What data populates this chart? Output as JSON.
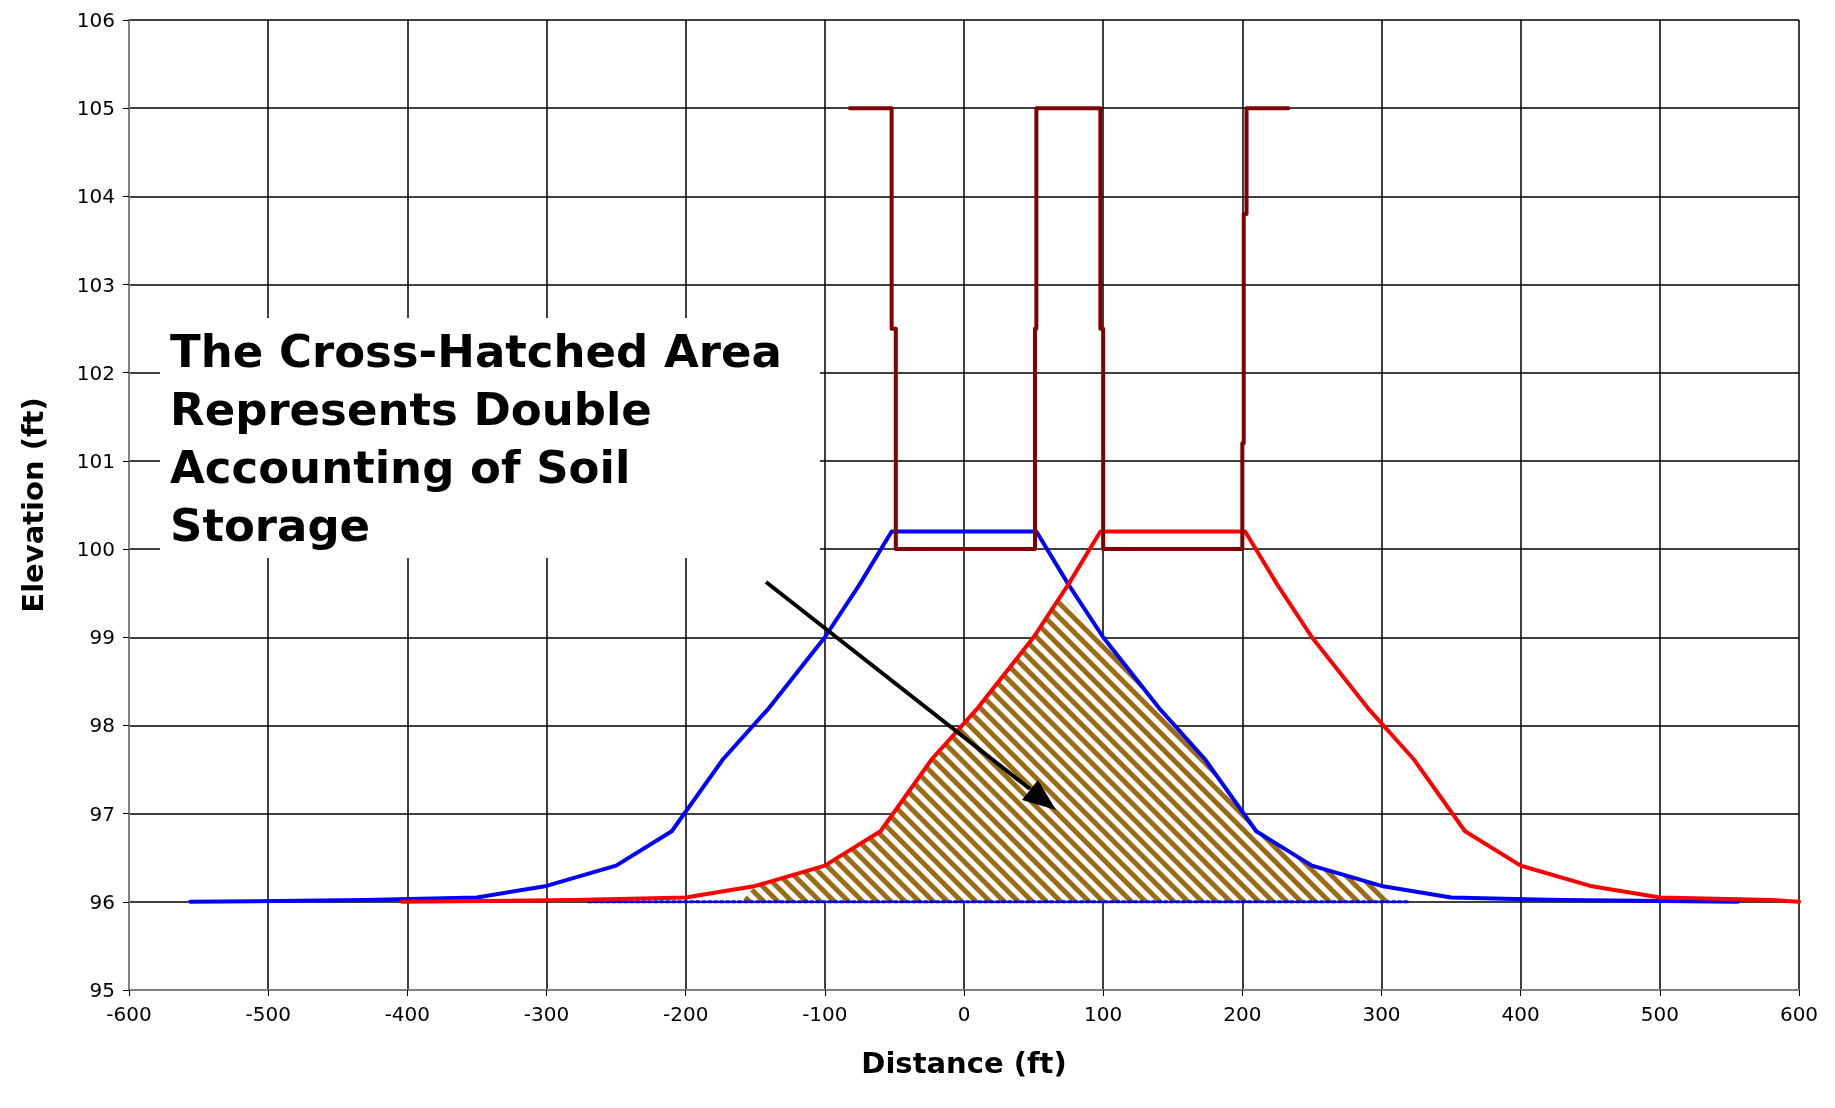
{
  "chart_data": {
    "type": "line",
    "xlabel": "Distance (ft)",
    "ylabel": "Elevation (ft)",
    "xlim": [
      -600,
      600
    ],
    "xticks": [
      -600,
      -500,
      -400,
      -300,
      -200,
      -100,
      0,
      100,
      200,
      300,
      400,
      500,
      600
    ],
    "ylim": [
      95,
      106
    ],
    "yticks": [
      95,
      96,
      97,
      98,
      99,
      100,
      101,
      102,
      103,
      104,
      105,
      106
    ],
    "grid": true,
    "marker": "none",
    "annotations": [
      "The Cross-Hatched Area Represents Double Accounting of Soil Storage"
    ],
    "series": [
      {
        "type": "area",
        "color": "#9c6b16",
        "x": [
          -160,
          -150,
          -100,
          -60,
          -23,
          10,
          50,
          70,
          100,
          140,
          173,
          210,
          250,
          300,
          310
        ],
        "values": [
          96,
          96.18,
          96.41,
          96.8,
          97.62,
          98.2,
          99,
          99.46,
          99,
          98.2,
          97.62,
          96.8,
          96.41,
          96.18,
          96
        ]
      },
      {
        "color": "#0000ff",
        "line_style": "dotted",
        "x": [
          -270,
          320
        ],
        "values": [
          96,
          96
        ]
      },
      {
        "color": "#0000ff",
        "x": [
          -556,
          -430,
          -350,
          -300,
          -250,
          -210,
          -173,
          -140,
          -100,
          -75,
          -52,
          52,
          75,
          100,
          140,
          173,
          210,
          250,
          300,
          350,
          430,
          556
        ],
        "values": [
          96,
          96.02,
          96.05,
          96.18,
          96.41,
          96.8,
          97.62,
          98.2,
          99,
          99.6,
          100.2,
          100.2,
          99.6,
          99,
          98.2,
          97.62,
          96.8,
          96.41,
          96.18,
          96.05,
          96.02,
          96
        ]
      },
      {
        "color": "#ff0000",
        "x": [
          -404,
          -280,
          -200,
          -150,
          -100,
          -60,
          -23,
          10,
          50,
          75,
          98,
          202,
          225,
          250,
          290,
          323,
          360,
          400,
          450,
          500,
          580,
          600
        ],
        "values": [
          96,
          96.02,
          96.05,
          96.18,
          96.41,
          96.8,
          97.62,
          98.2,
          99,
          99.6,
          100.2,
          100.2,
          99.6,
          99,
          98.2,
          97.62,
          96.8,
          96.41,
          96.18,
          96.05,
          96.02,
          96
        ]
      },
      {
        "color": "#800000",
        "x": [
          -82,
          -52,
          -52,
          -49,
          -49,
          51,
          51,
          52,
          52,
          98,
          98,
          100,
          100,
          200,
          200,
          201,
          201,
          203,
          203,
          233
        ],
        "values": [
          105,
          105,
          102.5,
          102.5,
          100,
          100,
          102.5,
          102.5,
          105,
          105,
          102.5,
          102.5,
          100,
          100,
          101.2,
          101.2,
          103.8,
          103.8,
          105,
          105
        ]
      }
    ]
  }
}
